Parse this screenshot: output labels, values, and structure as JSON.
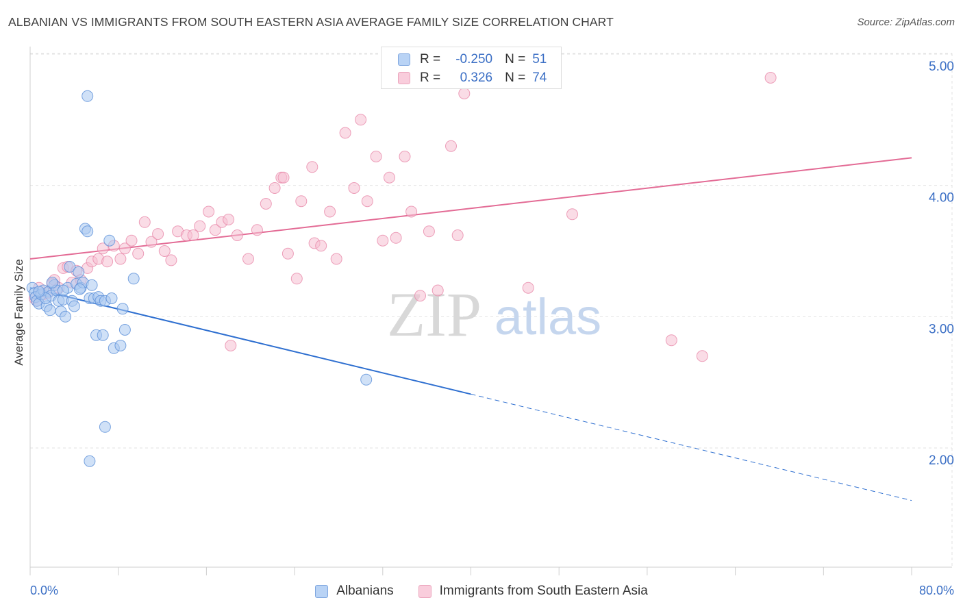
{
  "header": {
    "title": "ALBANIAN VS IMMIGRANTS FROM SOUTH EASTERN ASIA AVERAGE FAMILY SIZE CORRELATION CHART",
    "source": "Source: ZipAtlas.com"
  },
  "watermark": {
    "zip": "ZIP",
    "atlas": "atlas"
  },
  "stats": [
    {
      "r_label": "R =",
      "r_value": "-0.250",
      "n_label": "N =",
      "n_value": "51"
    },
    {
      "r_label": "R =",
      "r_value": "0.326",
      "n_label": "N =",
      "n_value": "74"
    }
  ],
  "legend": {
    "series1": "Albanians",
    "series2": "Immigrants from South Eastern Asia"
  },
  "colors": {
    "blue_fill": "#aac8f0",
    "blue_stroke": "#5a8fd8",
    "blue_line": "#2e6fd0",
    "pink_fill": "#f6c0d2",
    "pink_stroke": "#e88aaa",
    "pink_line": "#e36b95",
    "axis_text": "#3b6fc5",
    "grid": "#e2e2e2"
  },
  "chart_data": {
    "type": "scatter",
    "title": "ALBANIAN VS IMMIGRANTS FROM SOUTH EASTERN ASIA AVERAGE FAMILY SIZE CORRELATION CHART",
    "xlabel": "",
    "ylabel": "Average Family Size",
    "xlim": [
      0,
      80
    ],
    "ylim": [
      1.25,
      5.1
    ],
    "x_tick_labels": [
      "0.0%",
      "80.0%"
    ],
    "y_ticks": [
      2.0,
      3.0,
      4.0,
      5.0
    ],
    "y_tick_labels": [
      "2.00",
      "3.00",
      "4.00",
      "5.00"
    ],
    "grid": true,
    "series": [
      {
        "name": "Albanians",
        "points": [
          [
            0.2,
            3.22
          ],
          [
            0.4,
            3.18
          ],
          [
            0.5,
            3.15
          ],
          [
            0.6,
            3.12
          ],
          [
            0.8,
            3.1
          ],
          [
            1.0,
            3.17
          ],
          [
            1.2,
            3.2
          ],
          [
            1.5,
            3.08
          ],
          [
            1.7,
            3.19
          ],
          [
            1.9,
            3.16
          ],
          [
            2.2,
            3.24
          ],
          [
            2.4,
            3.2
          ],
          [
            2.6,
            3.12
          ],
          [
            2.8,
            3.04
          ],
          [
            3.0,
            3.13
          ],
          [
            3.2,
            3.0
          ],
          [
            3.4,
            3.22
          ],
          [
            3.6,
            3.38
          ],
          [
            3.8,
            3.12
          ],
          [
            4.0,
            3.08
          ],
          [
            4.2,
            3.25
          ],
          [
            4.4,
            3.34
          ],
          [
            4.6,
            3.22
          ],
          [
            4.8,
            3.26
          ],
          [
            5.0,
            3.67
          ],
          [
            5.2,
            3.65
          ],
          [
            5.4,
            3.14
          ],
          [
            5.6,
            3.24
          ],
          [
            5.8,
            3.14
          ],
          [
            6.0,
            2.86
          ],
          [
            6.2,
            3.15
          ],
          [
            6.4,
            3.12
          ],
          [
            6.6,
            2.86
          ],
          [
            6.8,
            3.12
          ],
          [
            7.2,
            3.58
          ],
          [
            7.4,
            3.14
          ],
          [
            7.6,
            2.76
          ],
          [
            8.2,
            2.78
          ],
          [
            8.6,
            2.9
          ],
          [
            9.4,
            3.29
          ],
          [
            5.2,
            4.68
          ],
          [
            6.8,
            2.16
          ],
          [
            5.4,
            1.9
          ],
          [
            8.4,
            3.06
          ],
          [
            2.0,
            3.26
          ],
          [
            1.4,
            3.14
          ],
          [
            0.8,
            3.19
          ],
          [
            3.0,
            3.2
          ],
          [
            4.5,
            3.21
          ],
          [
            30.5,
            2.52
          ],
          [
            1.8,
            3.05
          ]
        ]
      },
      {
        "name": "Immigrants from South Eastern Asia",
        "points": [
          [
            0.4,
            3.14
          ],
          [
            0.8,
            3.22
          ],
          [
            1.2,
            3.17
          ],
          [
            1.6,
            3.18
          ],
          [
            2.0,
            3.25
          ],
          [
            2.2,
            3.28
          ],
          [
            2.6,
            3.22
          ],
          [
            3.0,
            3.37
          ],
          [
            3.4,
            3.38
          ],
          [
            3.8,
            3.26
          ],
          [
            4.2,
            3.35
          ],
          [
            4.6,
            3.28
          ],
          [
            5.2,
            3.37
          ],
          [
            5.6,
            3.42
          ],
          [
            6.2,
            3.44
          ],
          [
            6.6,
            3.52
          ],
          [
            7.0,
            3.42
          ],
          [
            7.6,
            3.54
          ],
          [
            8.2,
            3.44
          ],
          [
            8.6,
            3.52
          ],
          [
            9.2,
            3.58
          ],
          [
            9.8,
            3.48
          ],
          [
            10.4,
            3.72
          ],
          [
            11.0,
            3.57
          ],
          [
            11.6,
            3.63
          ],
          [
            12.2,
            3.5
          ],
          [
            12.8,
            3.43
          ],
          [
            13.4,
            3.65
          ],
          [
            14.2,
            3.62
          ],
          [
            14.8,
            3.62
          ],
          [
            15.4,
            3.69
          ],
          [
            16.2,
            3.8
          ],
          [
            16.8,
            3.66
          ],
          [
            17.4,
            3.72
          ],
          [
            18.0,
            3.74
          ],
          [
            18.8,
            3.62
          ],
          [
            19.8,
            3.44
          ],
          [
            20.6,
            3.66
          ],
          [
            21.4,
            3.86
          ],
          [
            22.2,
            3.98
          ],
          [
            22.8,
            4.06
          ],
          [
            23.4,
            3.48
          ],
          [
            24.2,
            3.29
          ],
          [
            24.6,
            3.88
          ],
          [
            25.8,
            3.56
          ],
          [
            26.4,
            3.54
          ],
          [
            27.2,
            3.8
          ],
          [
            27.8,
            3.44
          ],
          [
            28.6,
            4.4
          ],
          [
            29.4,
            3.98
          ],
          [
            30.0,
            4.5
          ],
          [
            30.6,
            3.88
          ],
          [
            31.4,
            4.22
          ],
          [
            32.0,
            3.58
          ],
          [
            32.6,
            4.06
          ],
          [
            33.2,
            3.6
          ],
          [
            34.0,
            4.22
          ],
          [
            34.6,
            3.8
          ],
          [
            35.4,
            3.16
          ],
          [
            36.2,
            3.65
          ],
          [
            37.0,
            3.2
          ],
          [
            38.2,
            4.3
          ],
          [
            38.8,
            3.62
          ],
          [
            39.4,
            4.7
          ],
          [
            40.0,
            4.8
          ],
          [
            45.2,
            3.22
          ],
          [
            49.2,
            3.78
          ],
          [
            58.2,
            2.82
          ],
          [
            61.0,
            2.7
          ],
          [
            67.2,
            4.82
          ],
          [
            0.6,
            3.12
          ],
          [
            18.2,
            2.78
          ],
          [
            25.6,
            4.14
          ],
          [
            23.0,
            4.06
          ]
        ]
      }
    ],
    "trend_lines": [
      {
        "series": "Albanians",
        "solid": [
          [
            0,
            3.22
          ],
          [
            40,
            2.41
          ]
        ],
        "dashed": [
          [
            40,
            2.41
          ],
          [
            80,
            1.6
          ]
        ]
      },
      {
        "series": "Immigrants from South Eastern Asia",
        "solid": [
          [
            0,
            3.44
          ],
          [
            80,
            4.21
          ]
        ]
      }
    ]
  }
}
